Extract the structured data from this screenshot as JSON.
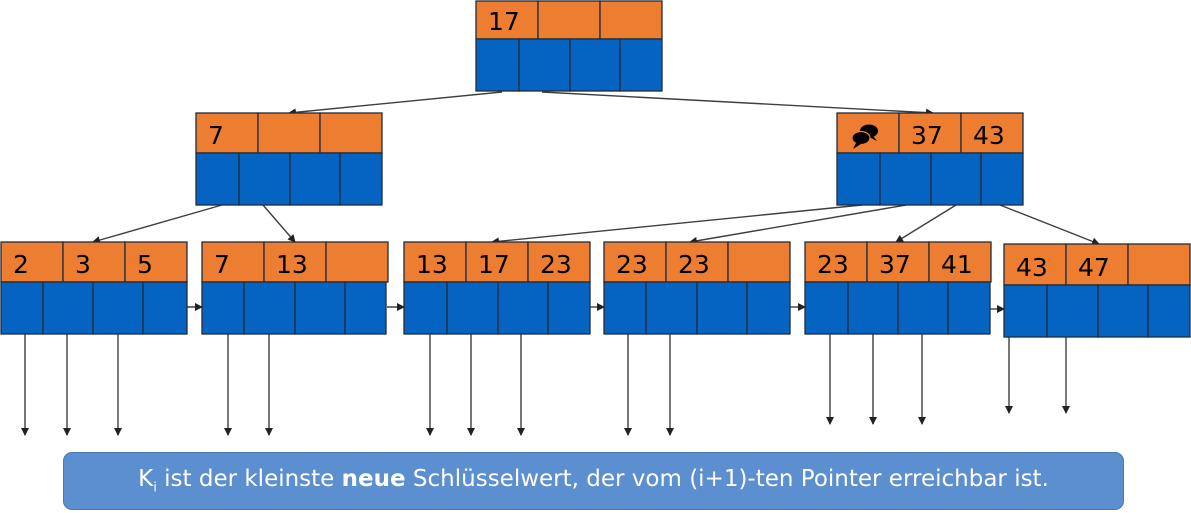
{
  "colors": {
    "key_fill": "#ed7d31",
    "pointer_fill": "#0563c1",
    "border": "#1f2d3d",
    "edge": "#3f3f3f",
    "caption_bg": "#5b8fcf"
  },
  "nodes": [
    {
      "id": "root",
      "keys": [
        "17",
        "",
        ""
      ]
    },
    {
      "id": "left",
      "keys": [
        "7",
        "",
        ""
      ]
    },
    {
      "id": "right",
      "keys": [
        "",
        "37",
        "43"
      ],
      "icon": "speech-bubbles-icon"
    },
    {
      "id": "leaf-1",
      "keys": [
        "2",
        "3",
        "5"
      ]
    },
    {
      "id": "leaf-2",
      "keys": [
        "7",
        "13",
        ""
      ]
    },
    {
      "id": "leaf-3",
      "keys": [
        "13",
        "17",
        "23"
      ]
    },
    {
      "id": "leaf-4",
      "keys": [
        "23",
        "23",
        ""
      ]
    },
    {
      "id": "leaf-5",
      "keys": [
        "23",
        "37",
        "41"
      ]
    },
    {
      "id": "leaf-6",
      "keys": [
        "43",
        "47",
        ""
      ]
    }
  ],
  "caption": {
    "k": "K",
    "i": "i",
    "part1": " ist der kleinste ",
    "bold": "neue",
    "part2": " Schlüsselwert, der vom (i+1)-ten Pointer erreichbar ist."
  }
}
